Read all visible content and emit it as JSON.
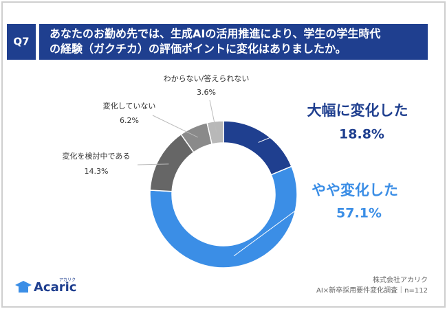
{
  "question": "Q7",
  "chart_data": {
    "type": "donut",
    "title": [
      "あなたのお勤め先では、生成AIの活用推進により、学生の学生時代",
      "の経験（ガクチカ）の評価ポイントに変化はありましたか。"
    ],
    "categories": [
      "大幅に変化した",
      "やや変化した",
      "変化を検討中である",
      "変化していない",
      "わからない/答えられない"
    ],
    "values": [
      18.8,
      57.1,
      14.3,
      6.2,
      3.6
    ],
    "value_labels": [
      "18.8%",
      "57.1%",
      "14.3%",
      "6.2%",
      "3.6%"
    ],
    "colors": [
      "#1f3f8f",
      "#3b8ee6",
      "#666666",
      "#8a8a8a",
      "#b8b8b8"
    ]
  },
  "footer": {
    "company": "株式会社アカリク",
    "survey": "AI×新卒採用要件変化調査｜n=112"
  },
  "logo": {
    "name": "Acaric",
    "kana": "アカリク"
  }
}
